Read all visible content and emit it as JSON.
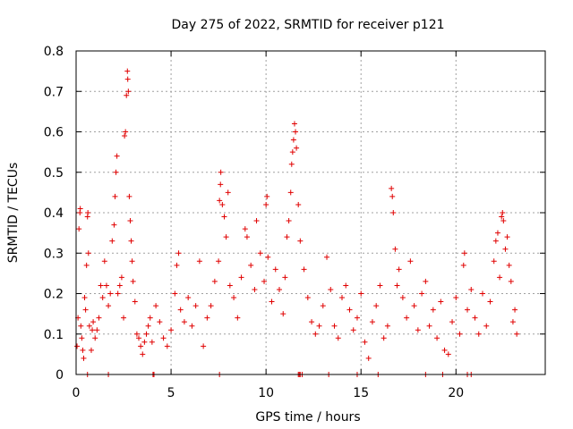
{
  "chart_data": {
    "type": "scatter",
    "title": "Day 275 of 2022, SRMTID for receiver p121",
    "xlabel": "GPS time / hours",
    "ylabel": "SRMTID / TECUs",
    "xlim": [
      0,
      24.7
    ],
    "ylim": [
      0,
      0.8
    ],
    "x_ticks": [
      0,
      5,
      10,
      15,
      20
    ],
    "x_tick_labels": [
      "0",
      "5",
      "10",
      "15",
      "20"
    ],
    "y_ticks": [
      0,
      0.1,
      0.2,
      0.3,
      0.4,
      0.5,
      0.6,
      0.7,
      0.8
    ],
    "y_tick_labels": [
      "0",
      "0.1",
      "0.2",
      "0.3",
      "0.4",
      "0.5",
      "0.6",
      "0.7",
      "0.8"
    ],
    "grid": true,
    "marker": "plus",
    "color": "#e00000",
    "series": [
      {
        "name": "SRMTID",
        "points": [
          [
            0.05,
            0.07
          ],
          [
            0.1,
            0.14
          ],
          [
            0.15,
            0.36
          ],
          [
            0.2,
            0.4
          ],
          [
            0.22,
            0.41
          ],
          [
            0.25,
            0.12
          ],
          [
            0.3,
            0.09
          ],
          [
            0.35,
            0.06
          ],
          [
            0.4,
            0.04
          ],
          [
            0.45,
            0.19
          ],
          [
            0.5,
            0.16
          ],
          [
            0.55,
            0.27
          ],
          [
            0.6,
            0.39
          ],
          [
            0.62,
            0.4
          ],
          [
            0.65,
            0.3
          ],
          [
            0.7,
            0.12
          ],
          [
            0.8,
            0.06
          ],
          [
            0.85,
            0.11
          ],
          [
            0.9,
            0.13
          ],
          [
            1.0,
            0.09
          ],
          [
            1.1,
            0.11
          ],
          [
            1.2,
            0.14
          ],
          [
            1.3,
            0.22
          ],
          [
            1.4,
            0.19
          ],
          [
            1.5,
            0.28
          ],
          [
            1.6,
            0.22
          ],
          [
            1.7,
            0.17
          ],
          [
            1.8,
            0.2
          ],
          [
            1.9,
            0.33
          ],
          [
            2.0,
            0.37
          ],
          [
            2.05,
            0.44
          ],
          [
            2.1,
            0.5
          ],
          [
            2.15,
            0.54
          ],
          [
            2.2,
            0.2
          ],
          [
            2.3,
            0.22
          ],
          [
            2.4,
            0.24
          ],
          [
            2.5,
            0.14
          ],
          [
            2.55,
            0.59
          ],
          [
            2.6,
            0.6
          ],
          [
            2.65,
            0.69
          ],
          [
            2.7,
            0.75
          ],
          [
            2.72,
            0.73
          ],
          [
            2.75,
            0.7
          ],
          [
            2.8,
            0.44
          ],
          [
            2.85,
            0.38
          ],
          [
            2.9,
            0.33
          ],
          [
            2.95,
            0.28
          ],
          [
            3.0,
            0.23
          ],
          [
            3.1,
            0.18
          ],
          [
            3.2,
            0.1
          ],
          [
            3.3,
            0.09
          ],
          [
            3.4,
            0.07
          ],
          [
            3.5,
            0.05
          ],
          [
            3.6,
            0.08
          ],
          [
            3.7,
            0.1
          ],
          [
            3.8,
            0.12
          ],
          [
            3.9,
            0.14
          ],
          [
            4.0,
            0.08
          ],
          [
            4.2,
            0.17
          ],
          [
            4.4,
            0.13
          ],
          [
            4.6,
            0.09
          ],
          [
            4.8,
            0.07
          ],
          [
            5.0,
            0.11
          ],
          [
            5.2,
            0.2
          ],
          [
            5.3,
            0.27
          ],
          [
            5.4,
            0.3
          ],
          [
            5.5,
            0.16
          ],
          [
            5.7,
            0.13
          ],
          [
            5.9,
            0.19
          ],
          [
            6.1,
            0.12
          ],
          [
            6.3,
            0.17
          ],
          [
            6.5,
            0.28
          ],
          [
            6.7,
            0.07
          ],
          [
            6.9,
            0.14
          ],
          [
            7.1,
            0.17
          ],
          [
            7.3,
            0.23
          ],
          [
            7.5,
            0.28
          ],
          [
            7.55,
            0.43
          ],
          [
            7.6,
            0.47
          ],
          [
            7.62,
            0.5
          ],
          [
            7.7,
            0.42
          ],
          [
            7.8,
            0.39
          ],
          [
            7.9,
            0.34
          ],
          [
            8.0,
            0.45
          ],
          [
            8.1,
            0.22
          ],
          [
            8.3,
            0.19
          ],
          [
            8.5,
            0.14
          ],
          [
            8.7,
            0.24
          ],
          [
            8.9,
            0.36
          ],
          [
            9.0,
            0.34
          ],
          [
            9.2,
            0.27
          ],
          [
            9.4,
            0.21
          ],
          [
            9.5,
            0.38
          ],
          [
            9.7,
            0.3
          ],
          [
            9.9,
            0.23
          ],
          [
            10.0,
            0.42
          ],
          [
            10.05,
            0.44
          ],
          [
            10.1,
            0.29
          ],
          [
            10.3,
            0.18
          ],
          [
            10.5,
            0.26
          ],
          [
            10.7,
            0.21
          ],
          [
            10.9,
            0.15
          ],
          [
            11.0,
            0.24
          ],
          [
            11.1,
            0.34
          ],
          [
            11.2,
            0.38
          ],
          [
            11.3,
            0.45
          ],
          [
            11.35,
            0.52
          ],
          [
            11.4,
            0.55
          ],
          [
            11.45,
            0.58
          ],
          [
            11.5,
            0.62
          ],
          [
            11.55,
            0.6
          ],
          [
            11.6,
            0.56
          ],
          [
            11.7,
            0.42
          ],
          [
            11.8,
            0.33
          ],
          [
            12.0,
            0.26
          ],
          [
            12.2,
            0.19
          ],
          [
            12.4,
            0.13
          ],
          [
            12.6,
            0.1
          ],
          [
            12.8,
            0.12
          ],
          [
            13.0,
            0.17
          ],
          [
            13.2,
            0.29
          ],
          [
            13.4,
            0.21
          ],
          [
            13.6,
            0.12
          ],
          [
            13.8,
            0.09
          ],
          [
            14.0,
            0.19
          ],
          [
            14.2,
            0.22
          ],
          [
            14.4,
            0.16
          ],
          [
            14.6,
            0.11
          ],
          [
            14.8,
            0.14
          ],
          [
            15.0,
            0.2
          ],
          [
            15.2,
            0.08
          ],
          [
            15.4,
            0.04
          ],
          [
            15.6,
            0.13
          ],
          [
            15.8,
            0.17
          ],
          [
            16.0,
            0.22
          ],
          [
            16.2,
            0.09
          ],
          [
            16.4,
            0.12
          ],
          [
            16.6,
            0.46
          ],
          [
            16.65,
            0.44
          ],
          [
            16.7,
            0.4
          ],
          [
            16.8,
            0.31
          ],
          [
            16.9,
            0.22
          ],
          [
            17.0,
            0.26
          ],
          [
            17.2,
            0.19
          ],
          [
            17.4,
            0.14
          ],
          [
            17.6,
            0.28
          ],
          [
            17.8,
            0.17
          ],
          [
            18.0,
            0.11
          ],
          [
            18.2,
            0.2
          ],
          [
            18.4,
            0.23
          ],
          [
            18.6,
            0.12
          ],
          [
            18.8,
            0.16
          ],
          [
            19.0,
            0.09
          ],
          [
            19.2,
            0.18
          ],
          [
            19.4,
            0.06
          ],
          [
            19.6,
            0.05
          ],
          [
            19.8,
            0.13
          ],
          [
            20.0,
            0.19
          ],
          [
            20.2,
            0.1
          ],
          [
            20.4,
            0.27
          ],
          [
            20.45,
            0.3
          ],
          [
            20.6,
            0.16
          ],
          [
            20.8,
            0.21
          ],
          [
            21.0,
            0.14
          ],
          [
            21.2,
            0.1
          ],
          [
            21.4,
            0.2
          ],
          [
            21.6,
            0.12
          ],
          [
            21.8,
            0.18
          ],
          [
            22.0,
            0.28
          ],
          [
            22.1,
            0.33
          ],
          [
            22.2,
            0.35
          ],
          [
            22.3,
            0.24
          ],
          [
            22.4,
            0.39
          ],
          [
            22.45,
            0.4
          ],
          [
            22.5,
            0.38
          ],
          [
            22.6,
            0.31
          ],
          [
            22.7,
            0.34
          ],
          [
            22.8,
            0.27
          ],
          [
            22.9,
            0.23
          ],
          [
            23.0,
            0.13
          ],
          [
            23.1,
            0.16
          ],
          [
            23.2,
            0.1
          ],
          [
            0.6,
            0
          ],
          [
            1.7,
            0
          ],
          [
            4.05,
            0
          ],
          [
            4.1,
            0
          ],
          [
            7.55,
            0
          ],
          [
            11.7,
            0
          ],
          [
            11.75,
            0
          ],
          [
            11.8,
            0
          ],
          [
            11.9,
            0
          ],
          [
            13.3,
            0
          ],
          [
            14.8,
            0
          ],
          [
            15.9,
            0
          ],
          [
            18.4,
            0
          ],
          [
            19.3,
            0
          ],
          [
            20.6,
            0
          ],
          [
            20.8,
            0
          ]
        ]
      }
    ]
  }
}
